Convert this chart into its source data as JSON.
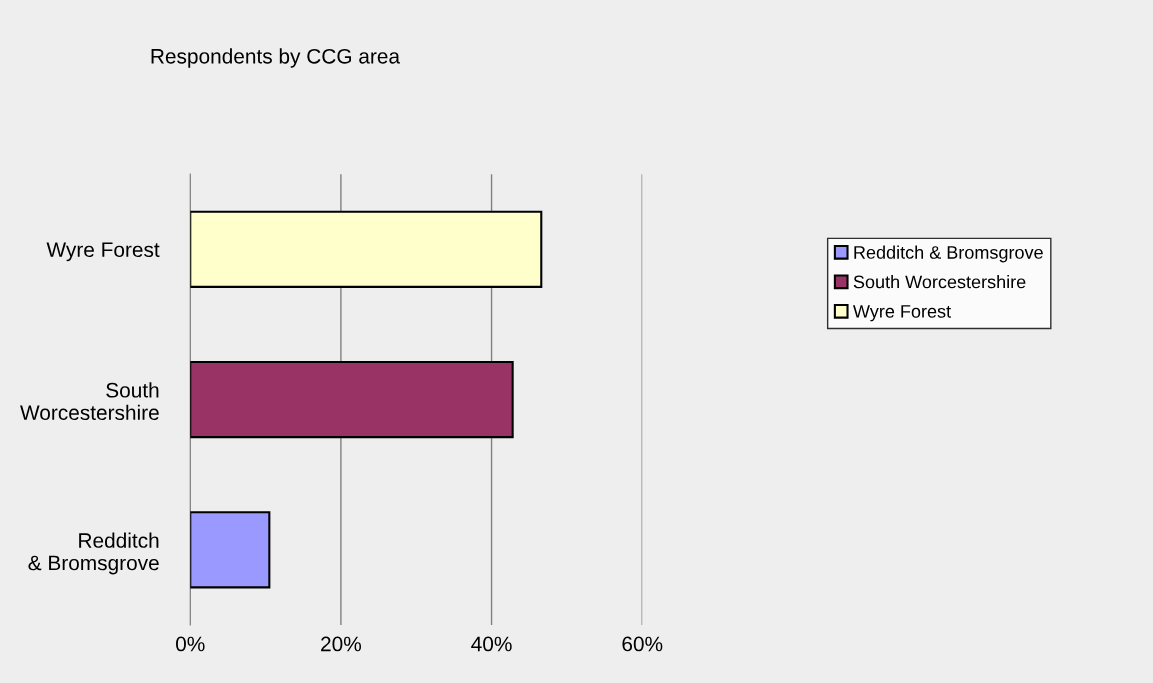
{
  "chart_data": {
    "type": "bar",
    "orientation": "horizontal",
    "title": "Respondents by CCG area",
    "categories": [
      "Wyre Forest",
      "South Worcestershire",
      "Redditch & Bromsgrove"
    ],
    "series": [
      {
        "name": "Redditch & Bromsgrove",
        "color": "#9999ff",
        "values": [
          null,
          null,
          10.5
        ]
      },
      {
        "name": "South Worcestershire",
        "color": "#993366",
        "values": [
          null,
          42.8,
          null
        ]
      },
      {
        "name": "Wyre Forest",
        "color": "#ffffcc",
        "values": [
          46.6,
          null,
          null
        ]
      }
    ],
    "xlim": [
      0,
      60
    ],
    "xticks": [
      {
        "value": 0,
        "label": "0%"
      },
      {
        "value": 20,
        "label": "20%"
      },
      {
        "value": 40,
        "label": "40%"
      },
      {
        "value": 60,
        "label": "60%"
      }
    ],
    "grid": "x",
    "legend": "right"
  }
}
